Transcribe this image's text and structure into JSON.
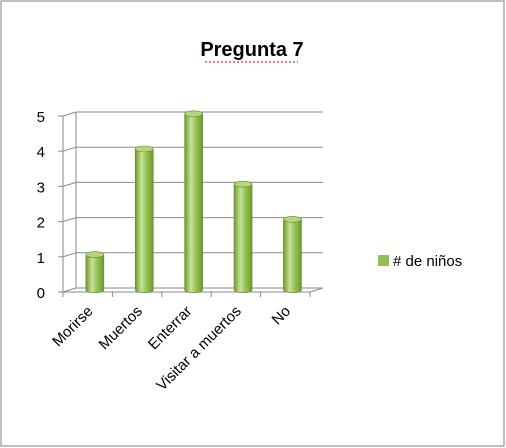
{
  "chart_data": {
    "type": "bar",
    "title": "Pregunta 7",
    "categories": [
      "Morirse",
      "Muertos",
      "Enterrar",
      "Visitar a muertos",
      "No"
    ],
    "series": [
      {
        "name": "# de niños",
        "values": [
          1,
          4,
          5,
          3,
          2
        ]
      }
    ],
    "xlabel": "",
    "ylabel": "",
    "ylim": [
      0,
      5
    ],
    "yticks": [
      "0",
      "1",
      "2",
      "3",
      "4",
      "5"
    ],
    "grid": true,
    "legend": "right",
    "colors": {
      "bar": "#92c050",
      "bar_dark": "#6d9a2e",
      "bar_light": "#c6e29a",
      "grid": "#8a8a8a",
      "border": "#7f7f7f"
    }
  }
}
